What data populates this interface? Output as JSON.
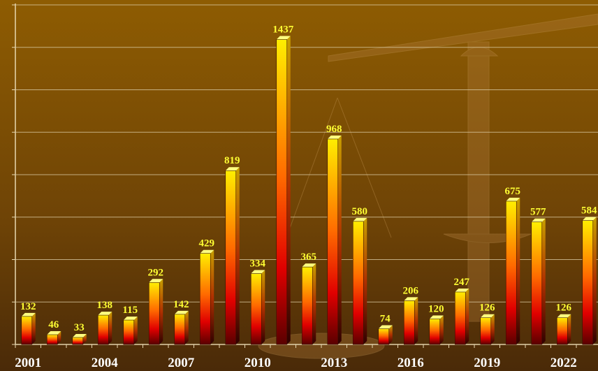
{
  "chart_data": {
    "type": "bar",
    "categories": [
      "2001",
      null,
      null,
      "2004",
      null,
      null,
      "2007",
      null,
      null,
      "2010",
      null,
      null,
      "2013",
      null,
      null,
      "2016",
      null,
      null,
      "2019",
      null,
      null,
      "2022",
      null
    ],
    "values": [
      132,
      46,
      33,
      138,
      115,
      292,
      142,
      429,
      819,
      334,
      1437,
      365,
      968,
      580,
      74,
      206,
      120,
      247,
      126,
      675,
      577,
      126,
      584
    ],
    "ylim": [
      0,
      1600
    ],
    "yticks": [
      0,
      200,
      400,
      600,
      800,
      1000,
      1200,
      1400,
      1600
    ],
    "grid": true
  }
}
